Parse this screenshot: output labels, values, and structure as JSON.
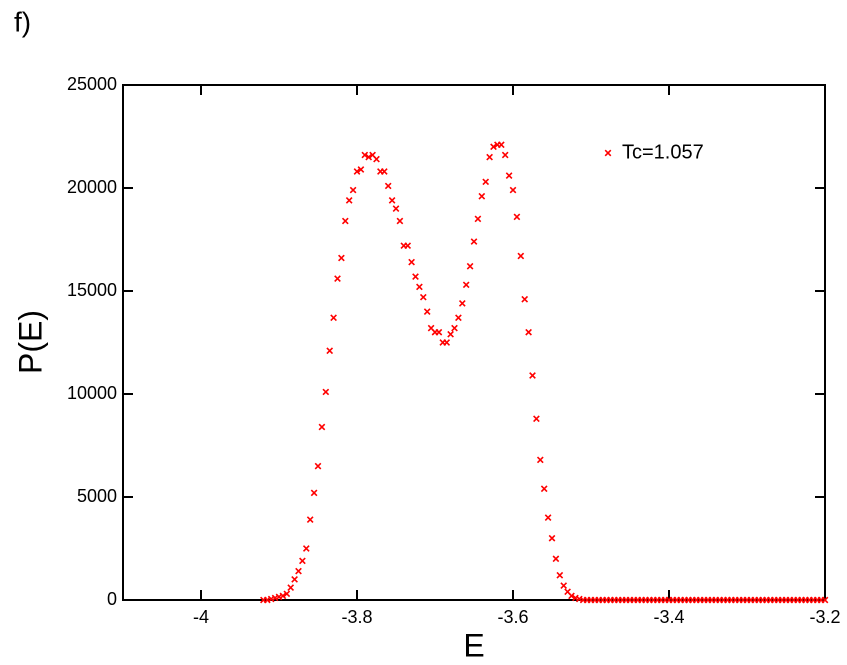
{
  "chart_data": {
    "type": "scatter",
    "title": "f)",
    "x_label": "E",
    "y_label": "P(E)",
    "xlim": [
      -4.1,
      -3.2
    ],
    "xticks": [
      -4,
      -3.8,
      -3.6,
      -3.4,
      -3.2
    ],
    "ylim": [
      0,
      25000
    ],
    "yticks": [
      0,
      5000,
      10000,
      15000,
      20000,
      25000
    ],
    "legend": "upper right",
    "series": [
      {
        "name": "Tc=1.057",
        "color": "#ff0000",
        "x": [
          -3.92,
          -3.915,
          -3.91,
          -3.905,
          -3.9,
          -3.895,
          -3.89,
          -3.885,
          -3.88,
          -3.875,
          -3.87,
          -3.865,
          -3.86,
          -3.855,
          -3.85,
          -3.845,
          -3.84,
          -3.835,
          -3.83,
          -3.825,
          -3.82,
          -3.815,
          -3.81,
          -3.805,
          -3.8,
          -3.795,
          -3.79,
          -3.785,
          -3.78,
          -3.775,
          -3.77,
          -3.765,
          -3.76,
          -3.755,
          -3.75,
          -3.745,
          -3.74,
          -3.735,
          -3.73,
          -3.725,
          -3.72,
          -3.715,
          -3.71,
          -3.705,
          -3.7,
          -3.695,
          -3.69,
          -3.685,
          -3.68,
          -3.675,
          -3.67,
          -3.665,
          -3.66,
          -3.655,
          -3.65,
          -3.645,
          -3.64,
          -3.635,
          -3.63,
          -3.625,
          -3.62,
          -3.615,
          -3.61,
          -3.605,
          -3.6,
          -3.595,
          -3.59,
          -3.585,
          -3.58,
          -3.575,
          -3.57,
          -3.565,
          -3.56,
          -3.555,
          -3.55,
          -3.545,
          -3.54,
          -3.535,
          -3.53,
          -3.525,
          -3.52,
          -3.515,
          -3.51,
          -3.505,
          -3.5,
          -3.495,
          -3.49,
          -3.485,
          -3.48,
          -3.475,
          -3.47,
          -3.465,
          -3.46,
          -3.455,
          -3.45,
          -3.445,
          -3.44,
          -3.435,
          -3.43,
          -3.425,
          -3.42,
          -3.415,
          -3.41,
          -3.405,
          -3.4,
          -3.395,
          -3.39,
          -3.385,
          -3.38,
          -3.375,
          -3.37,
          -3.365,
          -3.36,
          -3.355,
          -3.35,
          -3.345,
          -3.34,
          -3.335,
          -3.33,
          -3.325,
          -3.32,
          -3.315,
          -3.31,
          -3.305,
          -3.3,
          -3.295,
          -3.29,
          -3.285,
          -3.28,
          -3.275,
          -3.27,
          -3.265,
          -3.26,
          -3.255,
          -3.25,
          -3.245,
          -3.24,
          -3.235,
          -3.23,
          -3.225,
          -3.22,
          -3.215,
          -3.21,
          -3.205,
          -3.2
        ],
        "values": [
          0,
          0,
          50,
          100,
          150,
          200,
          300,
          600,
          1000,
          1400,
          1900,
          2500,
          3900,
          5200,
          6500,
          8400,
          10100,
          12100,
          13700,
          15600,
          16600,
          18400,
          19400,
          19900,
          20800,
          20900,
          21600,
          21500,
          21600,
          21400,
          20800,
          20800,
          20100,
          19400,
          19000,
          18400,
          17200,
          17200,
          16400,
          15700,
          15200,
          14700,
          14000,
          13200,
          13000,
          13000,
          12500,
          12500,
          12900,
          13200,
          13700,
          14400,
          15300,
          16200,
          17400,
          18500,
          19600,
          20300,
          21500,
          22000,
          22100,
          22100,
          21600,
          20600,
          19900,
          18600,
          16700,
          14600,
          13000,
          10900,
          8800,
          6800,
          5400,
          4000,
          3000,
          2000,
          1200,
          700,
          400,
          200,
          100,
          50,
          0,
          0,
          0,
          0,
          0,
          0,
          0,
          0,
          0,
          0,
          0,
          0,
          0,
          0,
          0,
          0,
          0,
          0,
          0,
          0,
          0,
          0,
          0,
          0,
          0,
          0,
          0,
          0,
          0,
          0,
          0,
          0,
          0,
          0,
          0,
          0,
          0,
          0,
          0,
          0,
          0,
          0,
          0,
          0,
          0,
          0,
          0,
          0,
          0,
          0,
          0,
          0,
          0,
          0,
          0,
          0,
          0,
          0,
          0,
          0,
          0,
          0,
          0
        ]
      }
    ]
  }
}
